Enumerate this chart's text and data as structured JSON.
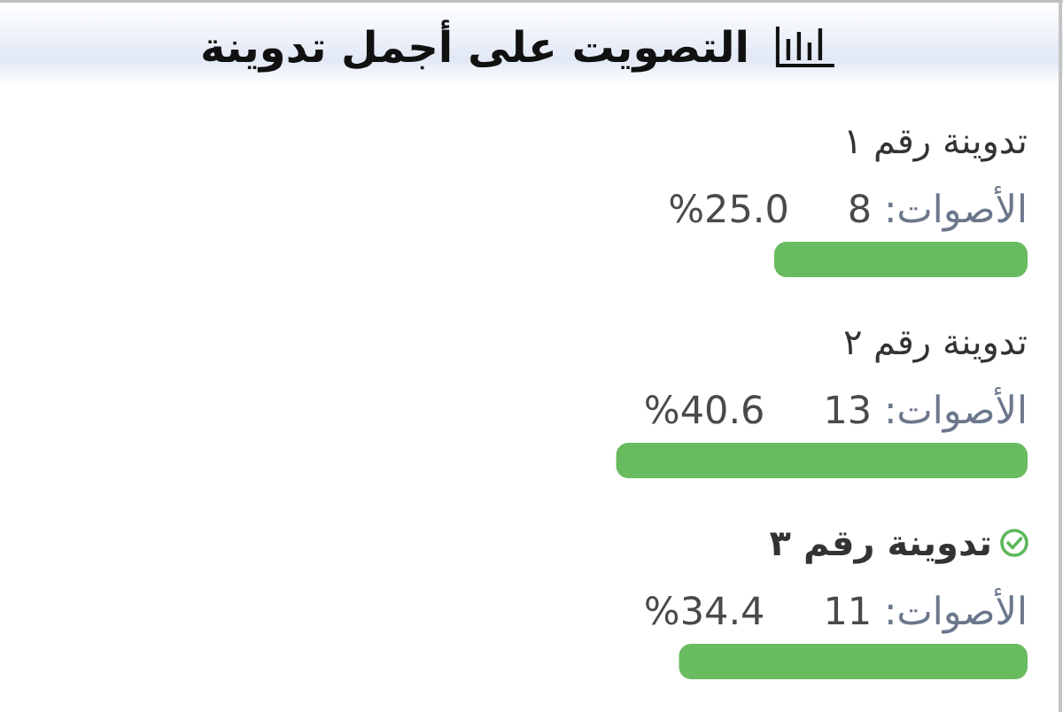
{
  "chart_data": {
    "type": "bar",
    "orientation": "horizontal",
    "title": "التصويت على أجمل تدوينة",
    "categories": [
      "تدوينة رقم ١",
      "تدوينة رقم ٢",
      "**تدوينة رقم ٣**"
    ],
    "values": [
      25.0,
      40.6,
      34.4
    ],
    "color": "#68bb5f",
    "value_labels": [
      "%25.0",
      "%40.6",
      "%34.4"
    ],
    "annotations": [
      "الأصوات: 8",
      "الأصوات: 13",
      "الأصوات: 11"
    ]
  }
}
